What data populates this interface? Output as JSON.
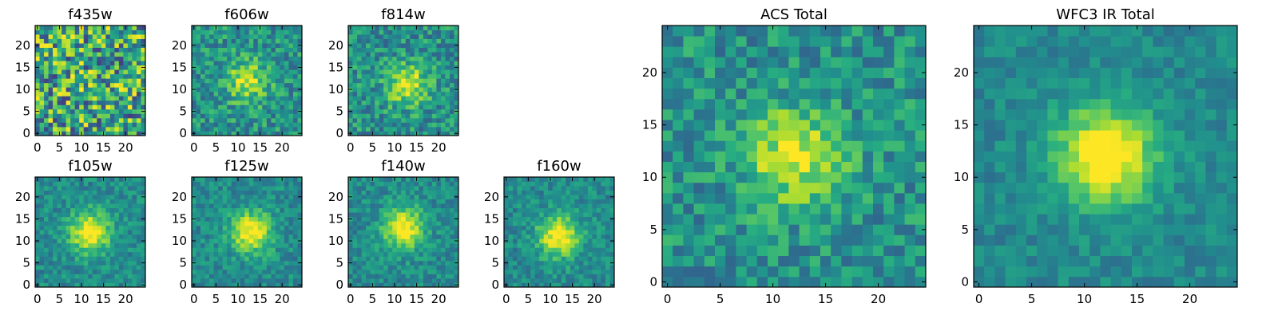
{
  "chart_data": [
    {
      "type": "heatmap",
      "title": "f435w",
      "xlim": [
        0,
        24
      ],
      "ylim": [
        0,
        24
      ],
      "xticks": [
        "0",
        "5",
        "10",
        "15",
        "20"
      ],
      "yticks": [
        "0",
        "5",
        "10",
        "15",
        "20"
      ],
      "grid_size": 25,
      "colormap": "viridis",
      "peak": [
        12,
        12
      ],
      "noise_level": 0.9,
      "seed": 11,
      "signal": 0.05
    },
    {
      "type": "heatmap",
      "title": "f606w",
      "xlim": [
        0,
        24
      ],
      "ylim": [
        0,
        24
      ],
      "xticks": [
        "0",
        "5",
        "10",
        "15",
        "20"
      ],
      "yticks": [
        "0",
        "5",
        "10",
        "15",
        "20"
      ],
      "grid_size": 25,
      "colormap": "viridis",
      "peak": [
        12,
        12
      ],
      "noise_level": 0.45,
      "seed": 23,
      "signal": 0.55
    },
    {
      "type": "heatmap",
      "title": "f814w",
      "xlim": [
        0,
        24
      ],
      "ylim": [
        0,
        24
      ],
      "xticks": [
        "0",
        "5",
        "10",
        "15",
        "20"
      ],
      "yticks": [
        "0",
        "5",
        "10",
        "15",
        "20"
      ],
      "grid_size": 25,
      "colormap": "viridis",
      "peak": [
        13,
        11
      ],
      "noise_level": 0.45,
      "seed": 37,
      "signal": 0.6
    },
    {
      "type": "heatmap",
      "title": "f105w",
      "xlim": [
        0,
        24
      ],
      "ylim": [
        0,
        24
      ],
      "xticks": [
        "0",
        "5",
        "10",
        "15",
        "20"
      ],
      "yticks": [
        "0",
        "5",
        "10",
        "15",
        "20"
      ],
      "grid_size": 25,
      "colormap": "viridis",
      "peak": [
        12,
        12
      ],
      "noise_level": 0.3,
      "seed": 41,
      "signal": 0.75
    },
    {
      "type": "heatmap",
      "title": "f125w",
      "xlim": [
        0,
        24
      ],
      "ylim": [
        0,
        24
      ],
      "xticks": [
        "0",
        "5",
        "10",
        "15",
        "20"
      ],
      "yticks": [
        "0",
        "5",
        "10",
        "15",
        "20"
      ],
      "grid_size": 25,
      "colormap": "viridis",
      "peak": [
        13,
        12
      ],
      "noise_level": 0.3,
      "seed": 53,
      "signal": 0.75
    },
    {
      "type": "heatmap",
      "title": "f140w",
      "xlim": [
        0,
        24
      ],
      "ylim": [
        0,
        24
      ],
      "xticks": [
        "0",
        "5",
        "10",
        "15",
        "20"
      ],
      "yticks": [
        "0",
        "5",
        "10",
        "15",
        "20"
      ],
      "grid_size": 25,
      "colormap": "viridis",
      "peak": [
        12,
        13
      ],
      "noise_level": 0.3,
      "seed": 67,
      "signal": 0.75
    },
    {
      "type": "heatmap",
      "title": "f160w",
      "xlim": [
        0,
        24
      ],
      "ylim": [
        0,
        24
      ],
      "xticks": [
        "0",
        "5",
        "10",
        "15",
        "20"
      ],
      "yticks": [
        "0",
        "5",
        "10",
        "15",
        "20"
      ],
      "grid_size": 25,
      "colormap": "viridis",
      "peak": [
        12,
        11
      ],
      "noise_level": 0.3,
      "seed": 79,
      "signal": 0.75
    },
    {
      "type": "heatmap",
      "title": "ACS Total",
      "xlim": [
        0,
        24
      ],
      "ylim": [
        0,
        24
      ],
      "xticks": [
        "0",
        "5",
        "10",
        "15",
        "20"
      ],
      "yticks": [
        "0",
        "5",
        "10",
        "15",
        "20"
      ],
      "grid_size": 25,
      "colormap": "viridis",
      "peak": [
        12,
        12
      ],
      "noise_level": 0.4,
      "seed": 97,
      "signal": 0.6
    },
    {
      "type": "heatmap",
      "title": "WFC3 IR Total",
      "xlim": [
        0,
        24
      ],
      "ylim": [
        0,
        24
      ],
      "xticks": [
        "0",
        "5",
        "10",
        "15",
        "20"
      ],
      "yticks": [
        "0",
        "5",
        "10",
        "15",
        "20"
      ],
      "grid_size": 25,
      "colormap": "viridis",
      "peak": [
        12,
        12
      ],
      "noise_level": 0.22,
      "seed": 113,
      "signal": 0.85
    }
  ]
}
